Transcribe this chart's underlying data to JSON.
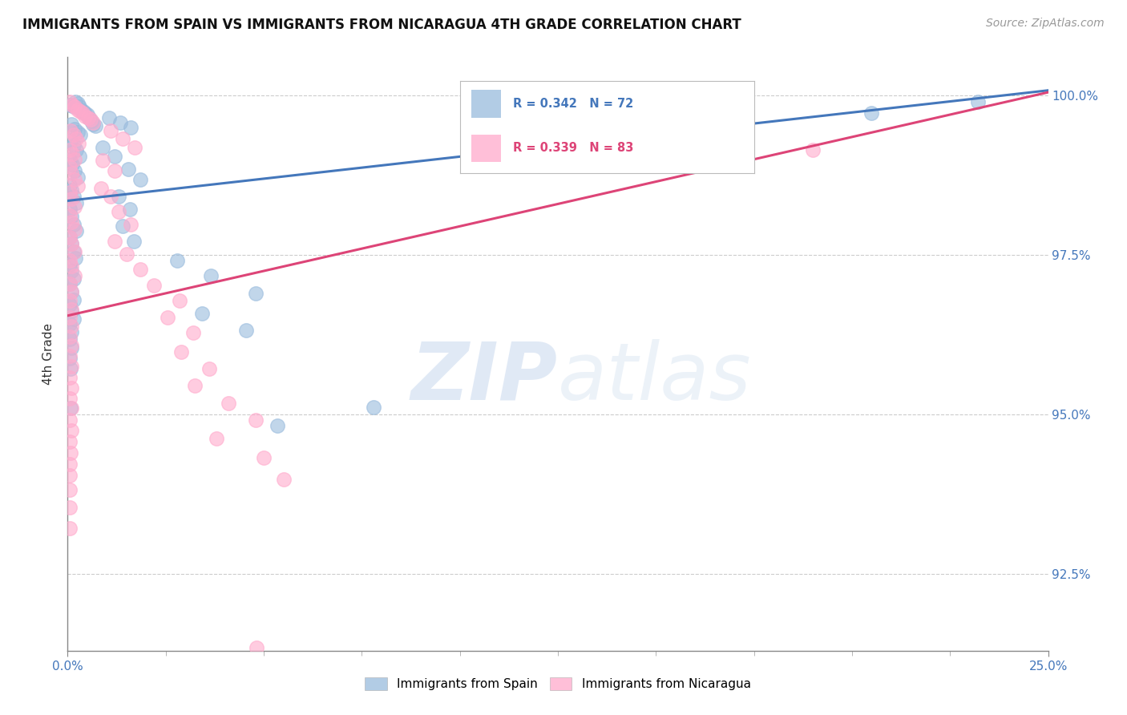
{
  "title": "IMMIGRANTS FROM SPAIN VS IMMIGRANTS FROM NICARAGUA 4TH GRADE CORRELATION CHART",
  "source": "Source: ZipAtlas.com",
  "ylabel": "4th Grade",
  "legend_blue_label": "Immigrants from Spain",
  "legend_pink_label": "Immigrants from Nicaragua",
  "R_blue": 0.342,
  "N_blue": 72,
  "R_pink": 0.339,
  "N_pink": 83,
  "blue_color": "#99BBDD",
  "pink_color": "#FFAACC",
  "trend_blue": "#4477BB",
  "trend_pink": "#DD4477",
  "watermark_zip": "ZIP",
  "watermark_atlas": "atlas",
  "xmin": 0.0,
  "xmax": 25.0,
  "ymin": 91.3,
  "ymax": 100.6,
  "blue_dots": [
    [
      0.05,
      99.85
    ],
    [
      0.1,
      99.85
    ],
    [
      0.15,
      99.82
    ],
    [
      0.2,
      99.9
    ],
    [
      0.25,
      99.88
    ],
    [
      0.3,
      99.82
    ],
    [
      0.35,
      99.78
    ],
    [
      0.4,
      99.75
    ],
    [
      0.45,
      99.72
    ],
    [
      0.5,
      99.7
    ],
    [
      0.55,
      99.65
    ],
    [
      0.6,
      99.6
    ],
    [
      0.65,
      99.55
    ],
    [
      0.7,
      99.52
    ],
    [
      0.1,
      99.55
    ],
    [
      0.18,
      99.48
    ],
    [
      0.25,
      99.42
    ],
    [
      0.32,
      99.38
    ],
    [
      0.08,
      99.3
    ],
    [
      0.15,
      99.22
    ],
    [
      0.22,
      99.15
    ],
    [
      0.3,
      99.05
    ],
    [
      0.05,
      99.0
    ],
    [
      0.12,
      98.92
    ],
    [
      0.18,
      98.82
    ],
    [
      0.25,
      98.72
    ],
    [
      0.05,
      98.6
    ],
    [
      0.1,
      98.52
    ],
    [
      0.16,
      98.42
    ],
    [
      0.22,
      98.32
    ],
    [
      0.05,
      98.22
    ],
    [
      0.1,
      98.1
    ],
    [
      0.16,
      97.98
    ],
    [
      0.22,
      97.88
    ],
    [
      0.05,
      97.78
    ],
    [
      0.1,
      97.68
    ],
    [
      0.15,
      97.55
    ],
    [
      0.2,
      97.45
    ],
    [
      0.05,
      97.35
    ],
    [
      0.1,
      97.25
    ],
    [
      0.15,
      97.12
    ],
    [
      0.05,
      97.05
    ],
    [
      0.1,
      96.92
    ],
    [
      0.15,
      96.8
    ],
    [
      0.05,
      96.72
    ],
    [
      0.1,
      96.62
    ],
    [
      0.15,
      96.5
    ],
    [
      0.05,
      96.42
    ],
    [
      0.1,
      96.3
    ],
    [
      0.05,
      96.18
    ],
    [
      0.1,
      96.05
    ],
    [
      0.05,
      95.88
    ],
    [
      0.08,
      95.72
    ],
    [
      0.08,
      95.1
    ],
    [
      1.05,
      99.65
    ],
    [
      1.35,
      99.58
    ],
    [
      1.6,
      99.5
    ],
    [
      0.9,
      99.18
    ],
    [
      1.2,
      99.05
    ],
    [
      1.55,
      98.85
    ],
    [
      1.85,
      98.68
    ],
    [
      1.3,
      98.42
    ],
    [
      1.58,
      98.22
    ],
    [
      1.4,
      97.95
    ],
    [
      1.68,
      97.72
    ],
    [
      2.8,
      97.42
    ],
    [
      3.65,
      97.18
    ],
    [
      4.8,
      96.9
    ],
    [
      3.42,
      96.58
    ],
    [
      4.55,
      96.32
    ],
    [
      5.35,
      94.82
    ],
    [
      7.8,
      95.12
    ],
    [
      23.2,
      99.9
    ],
    [
      20.5,
      99.72
    ]
  ],
  "pink_dots": [
    [
      0.05,
      99.9
    ],
    [
      0.12,
      99.85
    ],
    [
      0.18,
      99.82
    ],
    [
      0.25,
      99.78
    ],
    [
      0.32,
      99.75
    ],
    [
      0.38,
      99.72
    ],
    [
      0.45,
      99.68
    ],
    [
      0.52,
      99.65
    ],
    [
      0.58,
      99.62
    ],
    [
      0.65,
      99.58
    ],
    [
      0.08,
      99.45
    ],
    [
      0.15,
      99.38
    ],
    [
      0.22,
      99.32
    ],
    [
      0.28,
      99.25
    ],
    [
      0.05,
      99.15
    ],
    [
      0.12,
      99.08
    ],
    [
      0.18,
      99.0
    ],
    [
      0.05,
      98.88
    ],
    [
      0.1,
      98.78
    ],
    [
      0.18,
      98.68
    ],
    [
      0.25,
      98.58
    ],
    [
      0.05,
      98.48
    ],
    [
      0.1,
      98.38
    ],
    [
      0.18,
      98.25
    ],
    [
      0.05,
      98.12
    ],
    [
      0.1,
      98.02
    ],
    [
      0.18,
      97.9
    ],
    [
      0.05,
      97.78
    ],
    [
      0.1,
      97.68
    ],
    [
      0.18,
      97.55
    ],
    [
      0.05,
      97.42
    ],
    [
      0.1,
      97.32
    ],
    [
      0.18,
      97.18
    ],
    [
      0.05,
      97.05
    ],
    [
      0.1,
      96.92
    ],
    [
      0.05,
      96.78
    ],
    [
      0.1,
      96.65
    ],
    [
      0.05,
      96.52
    ],
    [
      0.1,
      96.38
    ],
    [
      0.05,
      96.22
    ],
    [
      0.1,
      96.08
    ],
    [
      0.05,
      95.92
    ],
    [
      0.1,
      95.75
    ],
    [
      0.05,
      95.58
    ],
    [
      0.1,
      95.42
    ],
    [
      0.05,
      95.25
    ],
    [
      0.1,
      95.1
    ],
    [
      0.05,
      94.92
    ],
    [
      0.1,
      94.75
    ],
    [
      0.05,
      94.58
    ],
    [
      0.08,
      94.4
    ],
    [
      0.05,
      94.22
    ],
    [
      0.06,
      94.05
    ],
    [
      0.05,
      93.82
    ],
    [
      0.05,
      93.55
    ],
    [
      0.05,
      93.22
    ],
    [
      1.1,
      99.45
    ],
    [
      1.4,
      99.32
    ],
    [
      1.7,
      99.18
    ],
    [
      0.9,
      98.98
    ],
    [
      1.2,
      98.82
    ],
    [
      0.85,
      98.55
    ],
    [
      1.1,
      98.42
    ],
    [
      1.3,
      98.18
    ],
    [
      1.6,
      97.98
    ],
    [
      1.2,
      97.72
    ],
    [
      1.5,
      97.52
    ],
    [
      1.85,
      97.28
    ],
    [
      2.2,
      97.02
    ],
    [
      2.85,
      96.78
    ],
    [
      2.55,
      96.52
    ],
    [
      3.2,
      96.28
    ],
    [
      2.9,
      95.98
    ],
    [
      3.6,
      95.72
    ],
    [
      3.25,
      95.45
    ],
    [
      4.1,
      95.18
    ],
    [
      4.8,
      94.92
    ],
    [
      3.8,
      94.62
    ],
    [
      5.0,
      94.32
    ],
    [
      5.52,
      93.98
    ],
    [
      4.82,
      91.35
    ],
    [
      11.5,
      99.38
    ],
    [
      19.0,
      99.15
    ]
  ],
  "blue_trend_x": [
    0.0,
    25.0
  ],
  "blue_trend_y": [
    98.35,
    100.08
  ],
  "pink_trend_x": [
    0.0,
    25.0
  ],
  "pink_trend_y": [
    96.55,
    100.05
  ]
}
